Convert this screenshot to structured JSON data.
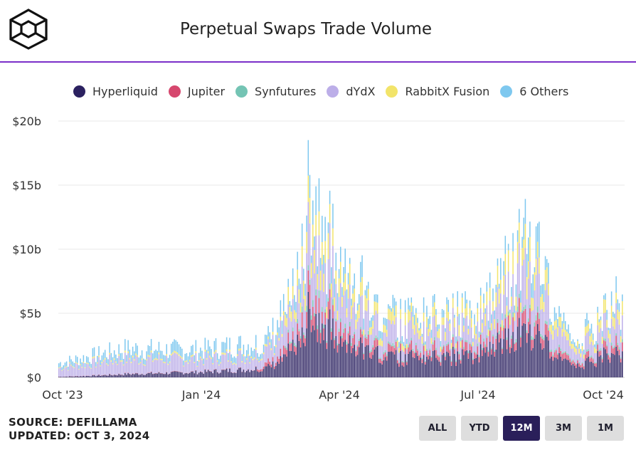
{
  "header": {
    "title": "Perpetual Swaps Trade Volume",
    "logo_icon": "cube-logo-icon"
  },
  "legend": [
    {
      "name": "Hyperliquid",
      "color": "#2b2160"
    },
    {
      "name": "Jupiter",
      "color": "#d6476e"
    },
    {
      "name": "Synfutures",
      "color": "#74c4b4"
    },
    {
      "name": "dYdX",
      "color": "#bcaee8"
    },
    {
      "name": "RabbitX Fusion",
      "color": "#f2e46a"
    },
    {
      "name": "6 Others",
      "color": "#7ec8ef"
    }
  ],
  "chart_data": {
    "type": "bar",
    "stacked": true,
    "title": "Perpetual Swaps Trade Volume",
    "x_range": [
      "2023-10-03",
      "2024-10-03"
    ],
    "x_tick_labels": [
      "Oct '23",
      "Jan '24",
      "Apr '24",
      "Jul '24",
      "Oct '24"
    ],
    "y_tick_labels": [
      "$0",
      "$5b",
      "$10b",
      "$15b",
      "$20b"
    ],
    "y_ticks": [
      0,
      5,
      10,
      15,
      20
    ],
    "ylim": [
      0,
      20
    ],
    "y_unit": "billion USD",
    "grid": true,
    "legend_position": "top",
    "series_names": [
      "Hyperliquid",
      "Jupiter",
      "Synfutures",
      "dYdX",
      "RabbitX Fusion",
      "6 Others"
    ],
    "daily_totals_sample": [
      {
        "x": "2023-10-03",
        "total": 1.2
      },
      {
        "x": "2023-11-15",
        "total": 2.4
      },
      {
        "x": "2023-12-31",
        "total": 2.3
      },
      {
        "x": "2024-02-15",
        "total": 3.0
      },
      {
        "x": "2024-03-05",
        "total": 7.0
      },
      {
        "x": "2024-03-13",
        "total": 14.7
      },
      {
        "x": "2024-04-01",
        "total": 10.0
      },
      {
        "x": "2024-05-01",
        "total": 5.0
      },
      {
        "x": "2024-06-01",
        "total": 5.0
      },
      {
        "x": "2024-07-01",
        "total": 5.5
      },
      {
        "x": "2024-08-05",
        "total": 12.0
      },
      {
        "x": "2024-09-01",
        "total": 3.0
      },
      {
        "x": "2024-10-01",
        "total": 6.5
      }
    ]
  },
  "footer": {
    "source": "SOURCE: DEFILLAMA",
    "updated": "UPDATED: OCT 3, 2024"
  },
  "range_buttons": [
    {
      "label": "ALL",
      "active": false
    },
    {
      "label": "YTD",
      "active": false
    },
    {
      "label": "12M",
      "active": true
    },
    {
      "label": "3M",
      "active": false
    },
    {
      "label": "1M",
      "active": false
    }
  ]
}
